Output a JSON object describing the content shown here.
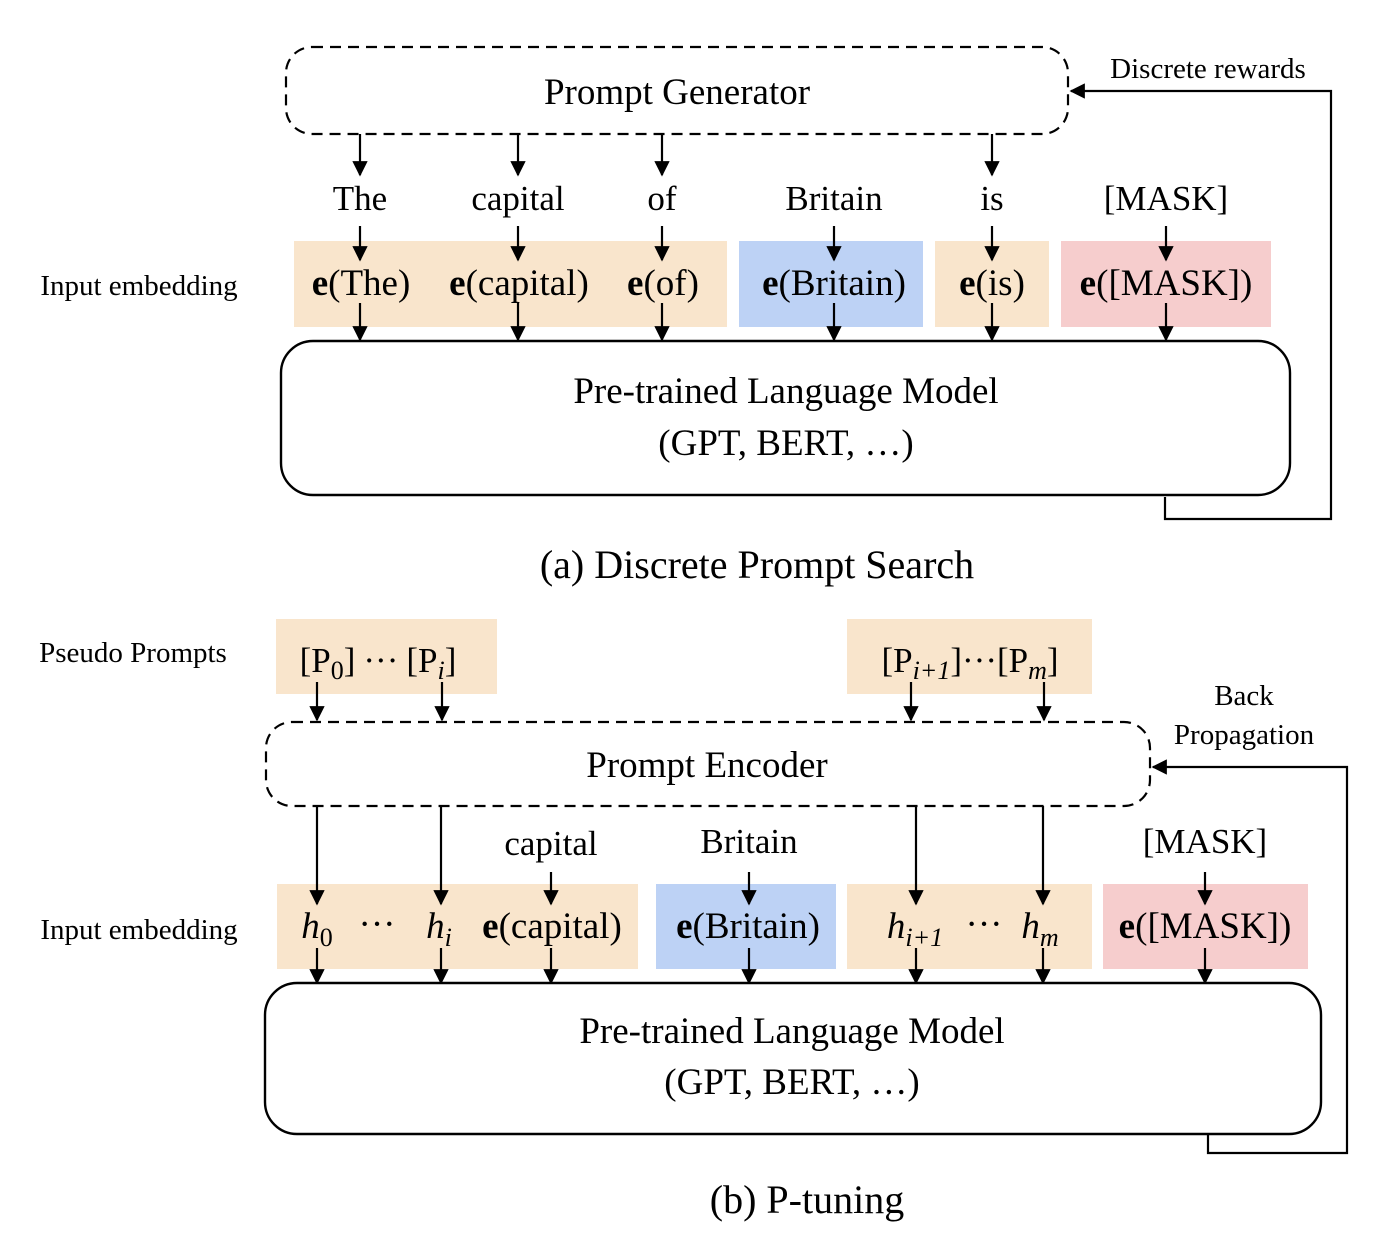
{
  "colors": {
    "orange": "#f9e5cc",
    "blue": "#bdd2f5",
    "red": "#f6cdcd"
  },
  "panel_a": {
    "generator_label": "Prompt Generator",
    "rewards_label": "Discrete rewards",
    "tokens": [
      "The",
      "capital",
      "of",
      "Britain",
      "is",
      "[MASK]"
    ],
    "input_embedding_label": "Input embedding",
    "embeddings": [
      "The",
      "capital",
      "of",
      "Britain",
      "is",
      "[MASK]"
    ],
    "embedding_prefix": "e",
    "model_line1": "Pre-trained Language Model",
    "model_line2": "(GPT, BERT, …)",
    "caption": "(a) Discrete Prompt Search"
  },
  "panel_b": {
    "pseudo_prompts_label": "Pseudo Prompts",
    "pseudo_left": {
      "p0": "P",
      "p0_sub": "0",
      "dots": "···",
      "pi": "P",
      "pi_sub": "i"
    },
    "pseudo_right": {
      "pi1": "P",
      "pi1_sub": "i+1",
      "dots": "···",
      "pm": "P",
      "pm_sub": "m"
    },
    "encoder_label": "Prompt Encoder",
    "back_prop_line1": "Back",
    "back_prop_line2": "Propagation",
    "tokens": [
      "capital",
      "Britain",
      "[MASK]"
    ],
    "input_embedding_label": "Input embedding",
    "h": "h",
    "h0_sub": "0",
    "hi_sub": "i",
    "hi1_sub": "i+1",
    "hm_sub": "m",
    "dots": "···",
    "emb_capital": "capital",
    "emb_britain": "Britain",
    "emb_mask": "[MASK]",
    "embedding_prefix": "e",
    "model_line1": "Pre-trained Language Model",
    "model_line2": "(GPT, BERT, …)",
    "caption": "(b) P-tuning"
  }
}
